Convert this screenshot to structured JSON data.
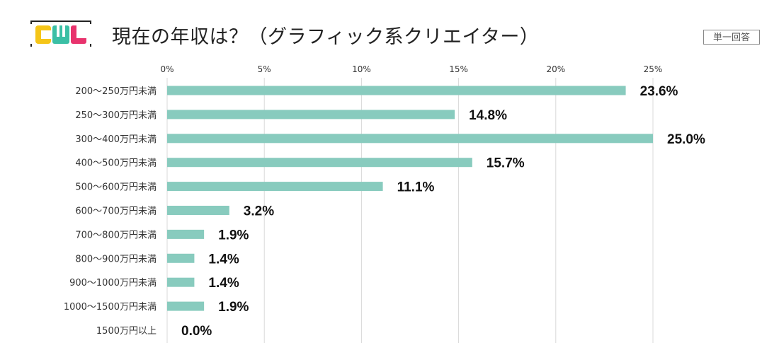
{
  "header": {
    "title": "現在の年収は？（グラフィック系クリエイター）",
    "badge": "単一回答",
    "logo_text": "CWL",
    "logo_colors": [
      "#f5c518",
      "#3bbfa5",
      "#e8336d"
    ]
  },
  "chart_data": {
    "type": "bar",
    "orientation": "horizontal",
    "title": "現在の年収は？（グラフィック系クリエイター）",
    "xlabel": "",
    "ylabel": "",
    "xlim": [
      0,
      25
    ],
    "x_ticks": [
      "0%",
      "5%",
      "10%",
      "15%",
      "20%",
      "25%"
    ],
    "x_tick_values": [
      0,
      5,
      10,
      15,
      20,
      25
    ],
    "grid": true,
    "bar_color": "#88cbbe",
    "categories": [
      "200〜250万円未満",
      "250〜300万円未満",
      "300〜400万円未満",
      "400〜500万円未満",
      "500〜600万円未満",
      "600〜700万円未満",
      "700〜800万円未満",
      "800〜900万円未満",
      "900〜1000万円未満",
      "1000〜1500万円未満",
      "1500万円以上"
    ],
    "values": [
      23.6,
      14.8,
      25.0,
      15.7,
      11.1,
      3.2,
      1.9,
      1.4,
      1.4,
      1.9,
      0.0
    ],
    "value_labels": [
      "23.6%",
      "14.8%",
      "25.0%",
      "15.7%",
      "11.1%",
      "3.2%",
      "1.9%",
      "1.4%",
      "1.4%",
      "1.9%",
      "0.0%"
    ]
  }
}
